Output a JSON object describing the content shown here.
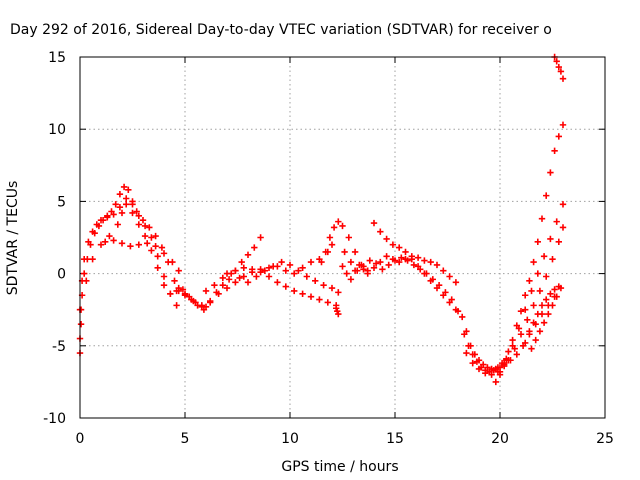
{
  "chart_data": {
    "type": "scatter",
    "title": "Day 292 of 2016, Sidereal Day-to-day VTEC variation (SDTVAR) for receiver o",
    "xlabel": "GPS time / hours",
    "ylabel": "SDTVAR / TECUs",
    "xlim": [
      0,
      25
    ],
    "ylim": [
      -10,
      15
    ],
    "xticks": [
      "0",
      "5",
      "10",
      "15",
      "20",
      "25"
    ],
    "yticks": [
      "-10",
      "-5",
      "0",
      "5",
      "10",
      "15"
    ],
    "grid": true,
    "marker": "+",
    "color": "#ff0000",
    "series": [
      {
        "x": [
          0.0,
          0.05,
          0.1,
          0.2,
          0.35,
          0.5,
          0.7,
          0.9,
          1.1,
          1.3,
          1.5,
          1.7,
          1.9,
          2.1,
          2.3,
          2.5,
          2.7,
          3.0,
          3.3,
          3.6,
          3.9,
          4.2,
          4.5,
          4.7
        ],
        "y": [
          -5.5,
          -3.5,
          -1.5,
          0.0,
          1.0,
          2.0,
          2.8,
          3.3,
          3.7,
          4.0,
          4.3,
          4.8,
          5.5,
          6.0,
          5.8,
          5.0,
          4.3,
          3.7,
          3.2,
          2.6,
          1.8,
          0.8,
          -0.5,
          -1.2
        ]
      },
      {
        "x": [
          0.0,
          0.05,
          0.1,
          0.2,
          0.4,
          0.6,
          0.8,
          1.0,
          1.3,
          1.6,
          1.9,
          2.2,
          2.5,
          2.8,
          3.1,
          3.4,
          3.7,
          4.0,
          4.3,
          4.6
        ],
        "y": [
          -4.5,
          -2.5,
          -0.5,
          1.0,
          2.2,
          2.9,
          3.4,
          3.7,
          3.9,
          4.1,
          4.6,
          5.2,
          4.8,
          4.0,
          3.3,
          2.5,
          1.2,
          -0.2,
          -1.4,
          -2.2
        ]
      },
      {
        "x": [
          1.2,
          1.6,
          2.0,
          2.4,
          2.8,
          3.2,
          3.6,
          4.0,
          4.4,
          4.7
        ],
        "y": [
          2.2,
          2.3,
          2.1,
          1.9,
          2.0,
          2.1,
          1.9,
          1.4,
          0.8,
          0.2
        ]
      },
      {
        "x": [
          0.0,
          0.3,
          0.6,
          1.0,
          1.4,
          1.8,
          2.0,
          2.2,
          2.5,
          2.8,
          3.1,
          3.4,
          3.7,
          4.0,
          4.3,
          4.6,
          4.9,
          5.2,
          5.5,
          5.8,
          6.0
        ],
        "y": [
          -2.5,
          -0.5,
          1.0,
          2.0,
          2.6,
          3.4,
          4.2,
          4.8,
          4.2,
          3.4,
          2.6,
          1.6,
          0.4,
          -0.8,
          -1.4,
          -1.2,
          -1.1,
          -1.6,
          -2.0,
          -2.2,
          -2.3
        ]
      },
      {
        "x": [
          4.7,
          5.0,
          5.3,
          5.6,
          5.9,
          6.2,
          6.5,
          6.8,
          7.1,
          7.4,
          7.7,
          8.0,
          8.3,
          8.6
        ],
        "y": [
          -1.0,
          -1.5,
          -1.8,
          -2.2,
          -2.5,
          -2.0,
          -1.3,
          -0.8,
          -0.4,
          0.2,
          0.8,
          1.3,
          1.8,
          2.5
        ]
      },
      {
        "x": [
          5.0,
          5.4,
          5.8,
          6.2,
          6.6,
          7.0,
          7.4,
          7.8,
          8.2,
          8.6,
          9.0,
          9.4,
          9.8,
          10.2,
          10.6,
          11.0,
          11.4,
          11.8,
          12.0
        ],
        "y": [
          -1.4,
          -1.9,
          -2.3,
          -1.9,
          -1.4,
          -1.0,
          -0.6,
          -0.2,
          0.1,
          0.3,
          0.4,
          0.5,
          0.2,
          0.0,
          0.4,
          0.8,
          1.0,
          1.5,
          2.0
        ]
      },
      {
        "x": [
          6.0,
          6.4,
          6.8,
          7.2,
          7.6,
          8.0,
          8.4,
          8.8,
          9.2,
          9.6,
          10.0,
          10.4,
          10.8,
          11.2,
          11.6,
          12.0,
          12.3
        ],
        "y": [
          -1.2,
          -0.8,
          -0.3,
          0.0,
          -0.3,
          -0.6,
          -0.2,
          0.2,
          0.5,
          0.8,
          0.6,
          0.2,
          -0.2,
          -0.5,
          -0.8,
          -1.0,
          -1.3
        ]
      },
      {
        "x": [
          7.0,
          7.4,
          7.8,
          8.2,
          8.6,
          9.0,
          9.4,
          9.8,
          10.2,
          10.6,
          11.0,
          11.4,
          11.8,
          12.2
        ],
        "y": [
          0.0,
          0.2,
          0.4,
          0.3,
          0.1,
          -0.2,
          -0.6,
          -0.9,
          -1.2,
          -1.4,
          -1.6,
          -1.8,
          -2.0,
          -2.2
        ]
      },
      {
        "x": [
          11.5,
          11.7,
          11.9,
          12.1,
          12.3
        ],
        "y": [
          0.8,
          1.5,
          2.5,
          3.2,
          3.6
        ]
      },
      {
        "x": [
          12.2,
          12.25,
          12.3
        ],
        "y": [
          -2.4,
          -2.6,
          -2.8
        ]
      },
      {
        "x": [
          12.5,
          12.8,
          13.1,
          13.4,
          13.7,
          14.0,
          14.3,
          14.6,
          14.9,
          15.2,
          15.5,
          15.8,
          16.1,
          16.4,
          16.7,
          17.0,
          17.3,
          17.6,
          17.9
        ],
        "y": [
          3.3,
          2.5,
          1.5,
          0.6,
          0.2,
          0.4,
          0.8,
          1.2,
          1.0,
          0.8,
          1.0,
          1.2,
          1.1,
          0.9,
          0.8,
          0.6,
          0.2,
          -0.2,
          -0.6
        ]
      },
      {
        "x": [
          12.6,
          12.9,
          13.2,
          13.5,
          13.8,
          14.1,
          14.4,
          14.7,
          15.0,
          15.3,
          15.6,
          15.9,
          16.2,
          16.5,
          16.8,
          17.1,
          17.4,
          17.7
        ],
        "y": [
          1.5,
          0.8,
          0.2,
          0.5,
          0.9,
          0.7,
          0.3,
          0.6,
          0.9,
          1.1,
          0.9,
          0.6,
          0.3,
          0.0,
          -0.4,
          -0.8,
          -1.3,
          -1.8
        ]
      },
      {
        "x": [
          14.0,
          14.3,
          14.6,
          14.9,
          15.2,
          15.5,
          15.8,
          16.1,
          16.4,
          16.7,
          17.0,
          17.3,
          17.6,
          17.9,
          18.0
        ],
        "y": [
          3.5,
          2.9,
          2.4,
          2.0,
          1.8,
          1.5,
          1.0,
          0.5,
          0.0,
          -0.5,
          -1.0,
          -1.5,
          -2.0,
          -2.5,
          -2.6
        ]
      },
      {
        "x": [
          12.5,
          12.7,
          12.9,
          13.1,
          13.3,
          13.5,
          13.7
        ],
        "y": [
          0.5,
          0.0,
          -0.4,
          0.2,
          0.6,
          0.3,
          0.0
        ]
      },
      {
        "x": [
          18.2,
          18.4,
          18.6,
          18.8,
          19.0,
          19.2,
          19.4,
          19.6,
          19.8,
          20.0,
          20.2
        ],
        "y": [
          -3.0,
          -4.0,
          -5.0,
          -5.6,
          -6.0,
          -6.3,
          -6.5,
          -6.6,
          -6.6,
          -6.5,
          -6.3
        ]
      },
      {
        "x": [
          18.3,
          18.5,
          18.7,
          18.9,
          19.1,
          19.3,
          19.5,
          19.7,
          19.9,
          20.1,
          20.3
        ],
        "y": [
          -4.2,
          -5.0,
          -5.6,
          -6.1,
          -6.5,
          -6.7,
          -6.8,
          -6.7,
          -6.5,
          -6.2,
          -5.9
        ]
      },
      {
        "x": [
          18.4,
          18.7,
          19.0,
          19.3,
          19.6,
          19.9,
          20.2,
          20.5
        ],
        "y": [
          -5.5,
          -6.2,
          -6.6,
          -6.9,
          -7.0,
          -6.8,
          -6.4,
          -6.0
        ]
      },
      {
        "x": [
          19.8,
          20.0,
          20.2,
          20.4,
          20.6,
          20.8,
          21.0,
          21.2,
          21.4,
          21.6,
          21.8,
          22.0,
          22.2,
          22.4,
          22.6,
          22.8,
          23.0
        ],
        "y": [
          -7.5,
          -7.0,
          -6.2,
          -5.4,
          -4.6,
          -3.6,
          -2.6,
          -1.5,
          -0.5,
          0.8,
          2.2,
          3.8,
          5.4,
          7.0,
          8.5,
          9.5,
          10.3
        ]
      },
      {
        "x": [
          20.0,
          20.3,
          20.6,
          20.9,
          21.2,
          21.5,
          21.8,
          22.1,
          22.4,
          22.7,
          23.0
        ],
        "y": [
          -6.8,
          -6.0,
          -5.0,
          -3.8,
          -2.5,
          -1.2,
          0.0,
          1.2,
          2.4,
          3.6,
          4.8
        ]
      },
      {
        "x": [
          20.4,
          20.7,
          21.0,
          21.3,
          21.6,
          21.9,
          22.2,
          22.5,
          22.8,
          23.0
        ],
        "y": [
          -6.0,
          -5.2,
          -4.2,
          -3.2,
          -2.2,
          -1.2,
          -0.2,
          1.0,
          2.2,
          3.2
        ]
      },
      {
        "x": [
          20.8,
          21.1,
          21.4,
          21.7,
          22.0,
          22.3,
          22.6,
          22.9
        ],
        "y": [
          -5.6,
          -5.0,
          -4.2,
          -3.5,
          -2.8,
          -2.2,
          -1.6,
          -1.0
        ]
      },
      {
        "x": [
          21.2,
          21.4,
          21.6,
          21.8,
          22.0,
          22.2,
          22.4,
          22.6,
          22.8
        ],
        "y": [
          -4.8,
          -4.0,
          -3.4,
          -2.8,
          -2.2,
          -1.8,
          -1.4,
          -1.1,
          -0.9
        ]
      },
      {
        "x": [
          21.5,
          21.7,
          21.9,
          22.1,
          22.3,
          22.5,
          22.7
        ],
        "y": [
          -5.2,
          -4.6,
          -4.0,
          -3.4,
          -2.8,
          -2.2,
          -1.6
        ]
      },
      {
        "x": [
          22.6,
          22.7,
          22.8,
          22.9,
          23.0
        ],
        "y": [
          15.0,
          14.7,
          14.3,
          14.0,
          13.5
        ]
      }
    ]
  }
}
